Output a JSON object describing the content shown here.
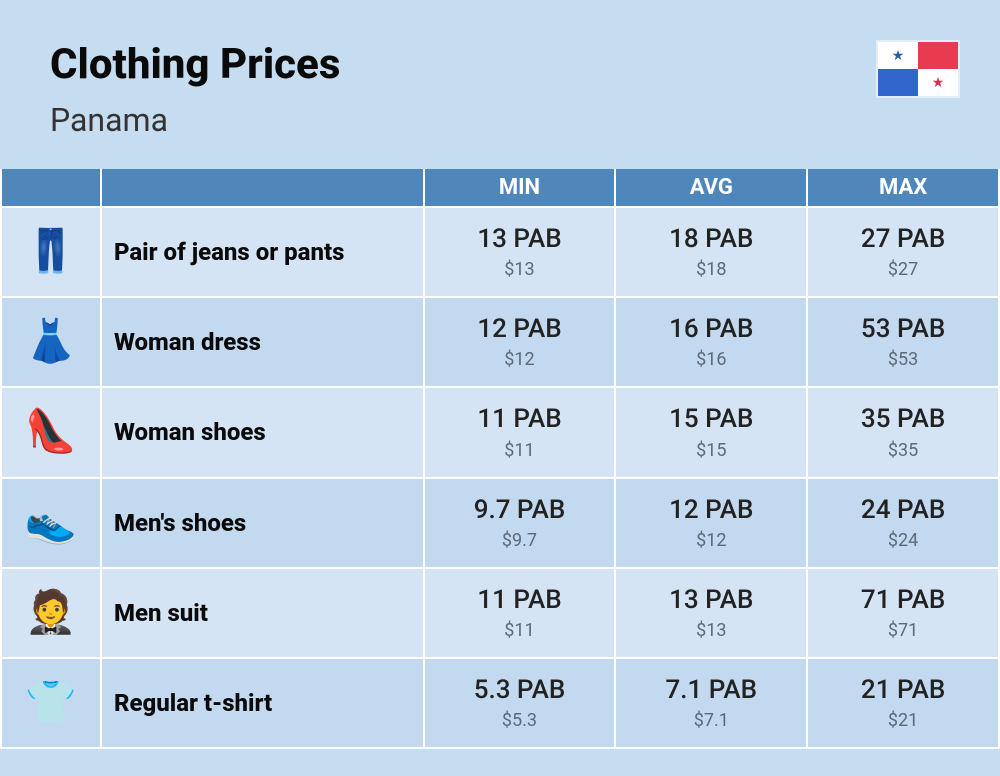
{
  "header": {
    "title": "Clothing Prices",
    "subtitle": "Panama"
  },
  "flag": {
    "q1_bg": "#ffffff",
    "q1_star": "★",
    "q1_star_color": "#2a5caa",
    "q2_bg": "#e83a50",
    "q3_bg": "#3366cc",
    "q4_bg": "#ffffff",
    "q4_star": "★",
    "q4_star_color": "#d9304f"
  },
  "columns": {
    "min": "MIN",
    "avg": "AVG",
    "max": "MAX"
  },
  "currency_code": "PAB",
  "usd_symbol": "$",
  "colors": {
    "page_bg": "#c5dcf1",
    "header_bg": "#4f87ba",
    "header_text": "#ffffff",
    "row_odd": "#d4e4f4",
    "row_even": "#c3d9ef",
    "border": "#ffffff",
    "title_text": "#0a0a0a",
    "label_text": "#0a0a0a",
    "price_main": "#222222",
    "price_sub": "#5c6a78"
  },
  "typography": {
    "title_fontsize": 42,
    "title_weight": 800,
    "subtitle_fontsize": 32,
    "col_header_fontsize": 22,
    "label_fontsize": 24,
    "label_weight": 800,
    "price_main_fontsize": 26,
    "price_sub_fontsize": 18
  },
  "rows": [
    {
      "icon": "👖",
      "label": "Pair of jeans or pants",
      "min": {
        "pab": "13 PAB",
        "usd": "$13"
      },
      "avg": {
        "pab": "18 PAB",
        "usd": "$18"
      },
      "max": {
        "pab": "27 PAB",
        "usd": "$27"
      }
    },
    {
      "icon": "👗",
      "label": "Woman dress",
      "min": {
        "pab": "12 PAB",
        "usd": "$12"
      },
      "avg": {
        "pab": "16 PAB",
        "usd": "$16"
      },
      "max": {
        "pab": "53 PAB",
        "usd": "$53"
      }
    },
    {
      "icon": "👠",
      "label": "Woman shoes",
      "min": {
        "pab": "11 PAB",
        "usd": "$11"
      },
      "avg": {
        "pab": "15 PAB",
        "usd": "$15"
      },
      "max": {
        "pab": "35 PAB",
        "usd": "$35"
      }
    },
    {
      "icon": "👟",
      "label": "Men's shoes",
      "min": {
        "pab": "9.7 PAB",
        "usd": "$9.7"
      },
      "avg": {
        "pab": "12 PAB",
        "usd": "$12"
      },
      "max": {
        "pab": "24 PAB",
        "usd": "$24"
      }
    },
    {
      "icon": "🤵",
      "label": "Men suit",
      "min": {
        "pab": "11 PAB",
        "usd": "$11"
      },
      "avg": {
        "pab": "13 PAB",
        "usd": "$13"
      },
      "max": {
        "pab": "71 PAB",
        "usd": "$71"
      }
    },
    {
      "icon": "👕",
      "label": "Regular t-shirt",
      "min": {
        "pab": "5.3 PAB",
        "usd": "$5.3"
      },
      "avg": {
        "pab": "7.1 PAB",
        "usd": "$7.1"
      },
      "max": {
        "pab": "21 PAB",
        "usd": "$21"
      }
    }
  ]
}
